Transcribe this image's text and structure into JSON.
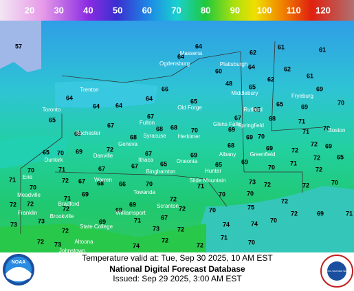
{
  "legend": {
    "labels": [
      20,
      30,
      40,
      50,
      60,
      70,
      80,
      90,
      100,
      110,
      120
    ]
  },
  "temperatures": [
    57,
    64,
    64,
    62,
    61,
    61,
    60,
    64,
    62,
    61,
    48,
    62,
    65,
    69,
    64,
    64,
    64,
    64,
    66,
    65,
    65,
    69,
    70,
    65,
    67,
    65,
    67,
    68,
    68,
    70,
    67,
    68,
    71,
    70,
    69,
    68,
    69,
    70,
    71,
    72,
    69,
    65,
    70,
    69,
    72,
    67,
    69,
    68,
    69,
    69,
    72,
    72,
    65,
    70,
    71,
    67,
    67,
    65,
    65,
    69,
    70,
    71,
    72,
    71,
    70,
    72,
    67,
    68,
    66,
    70,
    71,
    73,
    72,
    72,
    70,
    71,
    69,
    69,
    72,
    70,
    70,
    72,
    72,
    72,
    69,
    71,
    72,
    70,
    75,
    72,
    69,
    71,
    73,
    73,
    69,
    67,
    74,
    74,
    70,
    72,
    72,
    73,
    72,
    72,
    71,
    72,
    72,
    73,
    74,
    70
  ],
  "places": [
    "Trenton",
    "Toronto",
    "Rochester",
    "Massena",
    "Ogdensburg",
    "Plattsburgh",
    "Middlebury",
    "Old Forge",
    "Fulton",
    "Syracuse",
    "Herkimer",
    "Geneva",
    "Danville",
    "Dunkirk",
    "Ithaca",
    "Binghamton",
    "Oneonta",
    "Albany",
    "Glens Falls",
    "Rutland",
    "Springfield",
    "Greenfield",
    "Hunter",
    "Slide Mountain",
    "Towanda",
    "Scranton",
    "Erie",
    "Meadville",
    "Warren",
    "Franklin",
    "Bradford",
    "Brookville",
    "Williamsport",
    "State College",
    "Altoona",
    "Johnstown",
    "Fryeburg",
    "Boston"
  ],
  "footer": {
    "valid": "Temperature valid at: Tue, Sep 30 2025, 10 AM EST",
    "title": "National Digital Forecast Database",
    "issued": "Issued: Sep 29 2025, 3:00 AM EST"
  },
  "logos": {
    "left": "NOAA",
    "right": "NATIONAL WEATHER SERVICE"
  }
}
